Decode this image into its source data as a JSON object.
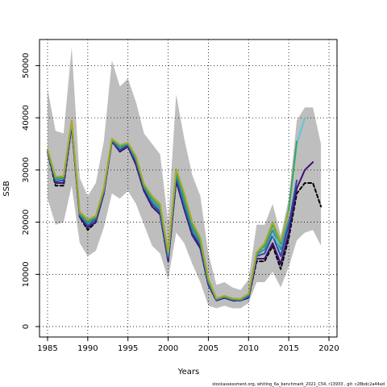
{
  "chart_data": {
    "type": "line",
    "title": "",
    "xlabel": "Years",
    "ylabel": "SSB",
    "xlim": [
      1984,
      2021
    ],
    "ylim": [
      -2000,
      55000
    ],
    "x_ticks": [
      1985,
      1990,
      1995,
      2000,
      2005,
      2010,
      2015,
      2020
    ],
    "y_ticks": [
      0,
      10000,
      20000,
      30000,
      40000,
      50000
    ],
    "grid": "dotted",
    "footer": "stockassessment.org,  whiting_6a_benchmark_2021_C54,  r13933 ,  git:  c28bdc2a44ad",
    "band": {
      "x": [
        1985,
        1986,
        1987,
        1988,
        1989,
        1990,
        1991,
        1992,
        1993,
        1994,
        1995,
        1996,
        1997,
        1998,
        1999,
        2000,
        2001,
        2002,
        2003,
        2004,
        2005,
        2006,
        2007,
        2008,
        2009,
        2010,
        2011,
        2012,
        2013,
        2014,
        2015,
        2016,
        2017,
        2018,
        2019
      ],
      "upper": [
        45500,
        37500,
        37000,
        53500,
        28500,
        25000,
        27500,
        35500,
        51000,
        46000,
        47500,
        43000,
        37000,
        35000,
        33000,
        20000,
        44500,
        36000,
        29000,
        25000,
        14000,
        8000,
        8500,
        7500,
        7000,
        9000,
        19500,
        19500,
        23500,
        17500,
        24500,
        39500,
        42000,
        42000,
        35000
      ],
      "lower": [
        24500,
        19500,
        20000,
        27000,
        16000,
        13500,
        14500,
        19000,
        25500,
        24500,
        26000,
        23500,
        19500,
        15500,
        14000,
        9000,
        18000,
        16000,
        12000,
        8500,
        4000,
        3500,
        4000,
        3500,
        3500,
        4500,
        8500,
        8500,
        10500,
        7500,
        11500,
        16500,
        18000,
        18500,
        15500
      ]
    },
    "series": [
      {
        "color": "#000000",
        "dashed": true,
        "x": [
          1985,
          1986,
          1987,
          1988,
          1989,
          1990,
          1991,
          1992,
          1993,
          1994,
          1995,
          1996,
          1997,
          1998,
          1999,
          2000,
          2001,
          2002,
          2003,
          2004,
          2005,
          2006,
          2007,
          2008,
          2009,
          2010,
          2011,
          2012,
          2013,
          2014,
          2015,
          2016,
          2017,
          2018,
          2019
        ],
        "values": [
          33500,
          27000,
          27000,
          38500,
          21000,
          18500,
          20000,
          25500,
          35500,
          33500,
          34500,
          31000,
          26000,
          23000,
          21500,
          12500,
          28000,
          22500,
          17500,
          15000,
          8000,
          5000,
          5500,
          5000,
          5000,
          5500,
          12500,
          12500,
          15500,
          11000,
          17000,
          25500,
          27500,
          27500,
          23000
        ]
      },
      {
        "color": "#3f0f78",
        "dashed": false,
        "x": [
          1985,
          1986,
          1987,
          1988,
          1989,
          1990,
          1991,
          1992,
          1993,
          1994,
          1995,
          1996,
          1997,
          1998,
          1999,
          2000,
          2001,
          2002,
          2003,
          2004,
          2005,
          2006,
          2007,
          2008,
          2009,
          2010,
          2011,
          2012,
          2013,
          2014,
          2015,
          2016,
          2017,
          2018
        ],
        "values": [
          33500,
          27500,
          27500,
          38500,
          21000,
          19000,
          20000,
          25500,
          35500,
          33500,
          34500,
          31000,
          26000,
          23000,
          21500,
          12500,
          28000,
          22500,
          17500,
          15000,
          8000,
          5000,
          5500,
          5000,
          5000,
          5500,
          13000,
          13000,
          16000,
          12000,
          18000,
          26500,
          30000,
          31500
        ]
      },
      {
        "color": "#2c4b9c",
        "dashed": false,
        "x": [
          1985,
          1986,
          1987,
          1988,
          1989,
          1990,
          1991,
          1992,
          1993,
          1994,
          1995,
          1996,
          1997,
          1998,
          1999,
          2000,
          2001,
          2002,
          2003,
          2004,
          2005,
          2006,
          2007,
          2008,
          2009,
          2010,
          2011,
          2012,
          2013,
          2014,
          2015,
          2016
        ],
        "values": [
          33500,
          27800,
          28000,
          39000,
          21300,
          19300,
          20500,
          25800,
          35700,
          33800,
          34800,
          31500,
          26500,
          23500,
          22000,
          13000,
          28700,
          23000,
          18000,
          15500,
          8300,
          5100,
          5600,
          5100,
          5000,
          5700,
          13500,
          14000,
          17500,
          13500,
          19500,
          28000
        ]
      },
      {
        "color": "#2e8fa1",
        "dashed": false,
        "x": [
          1985,
          1986,
          1987,
          1988,
          1989,
          1990,
          1991,
          1992,
          1993,
          1994,
          1995,
          1996,
          1997,
          1998,
          1999,
          2000,
          2001,
          2002,
          2003,
          2004,
          2005,
          2006,
          2007,
          2008,
          2009,
          2010,
          2011,
          2012,
          2013,
          2014,
          2015
        ],
        "values": [
          33700,
          28200,
          28400,
          39200,
          21500,
          19800,
          20800,
          26000,
          35800,
          34200,
          35000,
          32000,
          26800,
          24000,
          22500,
          13500,
          29200,
          23800,
          18800,
          16000,
          8600,
          5200,
          5700,
          5200,
          5100,
          6000,
          13800,
          14800,
          18500,
          14800,
          20500
        ]
      },
      {
        "color": "#5bc8d8",
        "dashed": false,
        "x": [
          2013,
          2014,
          2015,
          2016,
          2017
        ],
        "values": [
          17500,
          15500,
          22500,
          35000,
          40000
        ]
      },
      {
        "color": "#3aa655",
        "dashed": false,
        "x": [
          1985,
          1986,
          1987,
          1988,
          1989,
          1990,
          1991,
          1992,
          1993,
          1994,
          1995,
          1996,
          1997,
          1998,
          1999,
          2000,
          2001,
          2002,
          2003,
          2004,
          2005,
          2006,
          2007,
          2008,
          2009,
          2010,
          2011,
          2012,
          2013,
          2014,
          2015,
          2016
        ],
        "values": [
          33800,
          28500,
          28600,
          39300,
          21700,
          20200,
          21000,
          26200,
          35900,
          34600,
          35100,
          32300,
          27000,
          24500,
          23000,
          14000,
          29800,
          24800,
          19500,
          16500,
          8900,
          5300,
          5800,
          5300,
          5200,
          6200,
          14000,
          15500,
          19500,
          15800,
          22500,
          35500
        ]
      },
      {
        "color": "#a8a82c",
        "dashed": false,
        "x": [
          1985,
          1986,
          1987,
          1988,
          1989,
          1990,
          1991,
          1992,
          1993,
          1994,
          1995,
          1996,
          1997,
          1998,
          1999,
          2000,
          2001,
          2002,
          2003,
          2004,
          2005,
          2006,
          2007,
          2008,
          2009,
          2010,
          2011,
          2012,
          2013,
          2014,
          2015
        ],
        "values": [
          34000,
          28700,
          28800,
          39500,
          22000,
          20500,
          21200,
          26500,
          36000,
          34800,
          35200,
          32600,
          27300,
          25000,
          23500,
          14200,
          30200,
          25500,
          20000,
          17000,
          9200,
          5400,
          5900,
          5400,
          5300,
          6300,
          14200,
          16000,
          20000,
          16300,
          22000
        ]
      }
    ]
  }
}
